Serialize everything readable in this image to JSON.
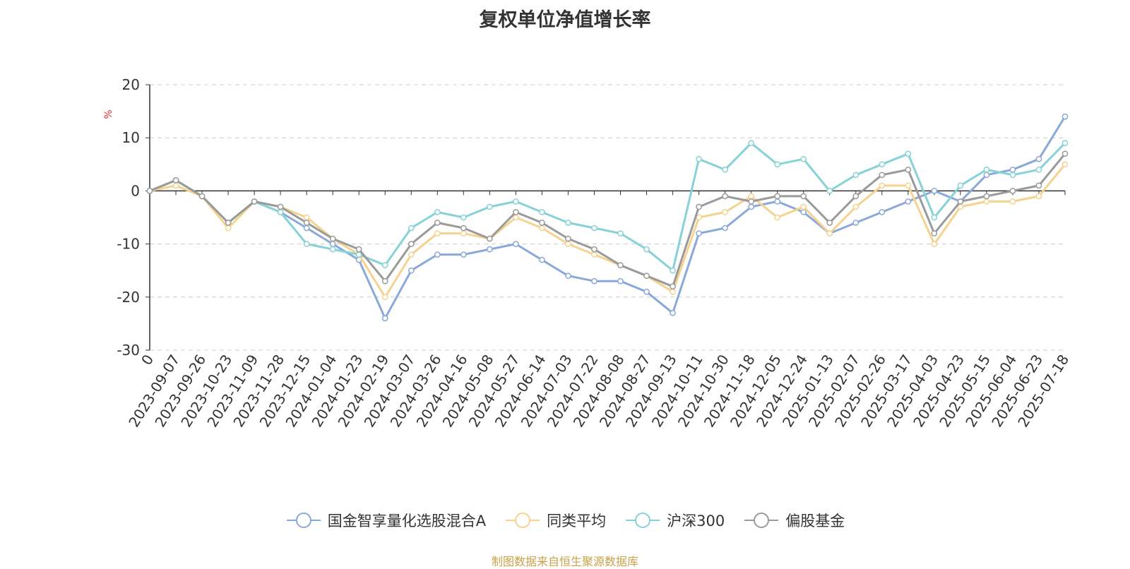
{
  "chart_data": {
    "type": "line",
    "title": "复权单位净值增长率",
    "ylabel": "%",
    "ylim": [
      -30,
      20
    ],
    "yticks": [
      20,
      10,
      0,
      -10,
      -20,
      -30
    ],
    "grid": "horizontal-dashed",
    "legend_position": "bottom",
    "x_ticks": [
      "0",
      "2023-09-07",
      "2023-09-26",
      "2023-10-23",
      "2023-11-09",
      "2023-11-28",
      "2023-12-15",
      "2024-01-04",
      "2024-01-23",
      "2024-02-19",
      "2024-03-07",
      "2024-03-26",
      "2024-04-16",
      "2024-05-08",
      "2024-05-27",
      "2024-06-14",
      "2024-07-03",
      "2024-07-22",
      "2024-08-08",
      "2024-08-27",
      "2024-09-13",
      "2024-10-11",
      "2024-10-30",
      "2024-11-18",
      "2024-12-05",
      "2024-12-24",
      "2025-01-13",
      "2025-02-07",
      "2025-02-26",
      "2025-03-17",
      "2025-04-03",
      "2025-04-23",
      "2025-05-15",
      "2025-06-04",
      "2025-06-23",
      "2025-07-18"
    ],
    "series": [
      {
        "name": "国金智享量化选股混合A",
        "color": "#8aa8d8",
        "values": [
          0,
          2,
          -1,
          -6,
          -2,
          -4,
          -7,
          -10,
          -13,
          -24,
          -15,
          -12,
          -12,
          -11,
          -10,
          -13,
          -16,
          -17,
          -17,
          -19,
          -23,
          -8,
          -7,
          -3,
          -2,
          -4,
          -8,
          -6,
          -4,
          -2,
          0,
          -2,
          3,
          4,
          6,
          14
        ]
      },
      {
        "name": "同类平均",
        "color": "#f6d28f",
        "values": [
          0,
          1,
          -1,
          -7,
          -2,
          -3,
          -5,
          -9,
          -12,
          -20,
          -12,
          -8,
          -8,
          -9,
          -5,
          -7,
          -10,
          -12,
          -14,
          -16,
          -19,
          -5,
          -4,
          -1,
          -5,
          -3,
          -8,
          -3,
          1,
          1,
          -10,
          -3,
          -2,
          -2,
          -1,
          5
        ]
      },
      {
        "name": "沪深300",
        "color": "#86d2d6",
        "values": [
          0,
          2,
          -1,
          -6,
          -2,
          -4,
          -10,
          -11,
          -12,
          -14,
          -7,
          -4,
          -5,
          -3,
          -2,
          -4,
          -6,
          -7,
          -8,
          -11,
          -15,
          6,
          4,
          9,
          5,
          6,
          0,
          3,
          5,
          7,
          -5,
          1,
          4,
          3,
          4,
          9
        ]
      },
      {
        "name": "偏股基金",
        "color": "#9a9a9a",
        "values": [
          0,
          2,
          -1,
          -6,
          -2,
          -3,
          -6,
          -9,
          -11,
          -17,
          -10,
          -6,
          -7,
          -9,
          -4,
          -6,
          -9,
          -11,
          -14,
          -16,
          -18,
          -3,
          -1,
          -2,
          -1,
          -1,
          -6,
          -1,
          3,
          4,
          -8,
          -2,
          -1,
          0,
          1,
          7
        ]
      }
    ]
  },
  "source_note": "制图数据来自恒生聚源数据库"
}
